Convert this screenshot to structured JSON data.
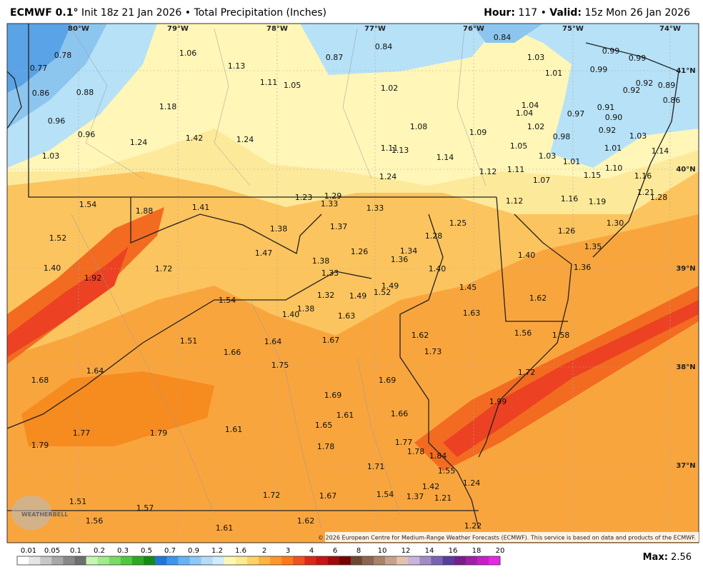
{
  "header": {
    "model": "ECMWF 0.1°",
    "init": "Init 18z 21 Jan 2026",
    "product": "Total Precipitation (Inches)",
    "hour_label": "Hour:",
    "hour": "117",
    "valid_label": "Valid:",
    "valid": "15z Mon 26 Jan 2026",
    "separator": "•"
  },
  "map": {
    "lon_labels": [
      "80°W",
      "79°W",
      "78°W",
      "77°W",
      "76°W",
      "75°W",
      "74°W"
    ],
    "lat_labels": [
      "41°N",
      "40°N",
      "39°N",
      "38°N",
      "37°N"
    ],
    "points": [
      "0.78",
      "0.77",
      "0.86",
      "0.88",
      "0.96",
      "0.96",
      "1.03",
      "1.06",
      "1.13",
      "1.11",
      "1.05",
      "0.87",
      "0.84",
      "0.84",
      "1.03",
      "1.02",
      "1.18",
      "1.24",
      "1.42",
      "1.24",
      "1.08",
      "1.09",
      "1.11",
      "1.13",
      "1.14",
      "1.24",
      "1.12",
      "1.11",
      "1.05",
      "1.03",
      "1.04",
      "1.04",
      "1.02",
      "1.01",
      "0.97",
      "0.98",
      "1.01",
      "0.99",
      "0.99",
      "0.99",
      "0.92",
      "0.89",
      "0.92",
      "0.86",
      "0.91",
      "0.90",
      "0.92",
      "1.03",
      "1.01",
      "1.14",
      "1.15",
      "1.10",
      "1.16",
      "1.21",
      "1.28",
      "1.16",
      "1.19",
      "1.07",
      "1.12",
      "1.54",
      "1.88",
      "1.41",
      "1.23",
      "1.29",
      "1.33",
      "1.33",
      "1.38",
      "1.37",
      "1.28",
      "1.25",
      "1.26",
      "1.30",
      "1.35",
      "1.40",
      "1.36",
      "1.52",
      "1.47",
      "1.38",
      "1.26",
      "1.34",
      "1.36",
      "1.40",
      "1.92",
      "1.72",
      "1.33",
      "1.40",
      "1.49",
      "1.49",
      "1.52",
      "1.32",
      "1.45",
      "1.54",
      "1.38",
      "1.40",
      "1.63",
      "1.63",
      "1.62",
      "1.51",
      "1.64",
      "1.67",
      "1.62",
      "1.73",
      "1.56",
      "1.58",
      "1.66",
      "1.75",
      "1.64",
      "1.68",
      "1.69",
      "1.72",
      "1.69",
      "1.99",
      "1.61",
      "1.66",
      "1.77",
      "1.79",
      "1.61",
      "1.65",
      "1.79",
      "1.77",
      "1.78",
      "1.84",
      "1.78",
      "1.71",
      "1.55",
      "1.42",
      "1.24",
      "1.51",
      "1.72",
      "1.67",
      "1.54",
      "1.37",
      "1.21",
      "1.57",
      "1.56",
      "1.62",
      "1.61",
      "1.22"
    ],
    "watermark": "WEATHERBELL",
    "copyright": "© 2026 European Centre for Medium-Range Weather Forecasts (ECMWF). This service is based on data and products of the ECMWF."
  },
  "colorbar": {
    "labels": [
      "0.01",
      "0.05",
      "0.1",
      "0.2",
      "0.3",
      "0.5",
      "0.7",
      "0.9",
      "1.2",
      "1.6",
      "2",
      "3",
      "4",
      "6",
      "8",
      "10",
      "12",
      "14",
      "16",
      "18",
      "20"
    ],
    "colors": [
      "#ffffff",
      "#e6e6e6",
      "#c8c8c8",
      "#a8a8a8",
      "#888888",
      "#6e6e6e",
      "#c6f5b4",
      "#a0eb8c",
      "#78dc64",
      "#50c83c",
      "#2daa23",
      "#148c14",
      "#1e78dc",
      "#3c96f0",
      "#64b4f5",
      "#8cc8fa",
      "#b4dcfa",
      "#d2ecfc",
      "#fff8b4",
      "#ffeb8c",
      "#ffd264",
      "#ffb43c",
      "#ff9628",
      "#ff7814",
      "#f0501e",
      "#dc2814",
      "#c81414",
      "#a00a0a",
      "#780000",
      "#6e4632",
      "#8c6450",
      "#aa8264",
      "#c8a08c",
      "#e1c3b4",
      "#c8b4dc",
      "#a08cc8",
      "#7864b4",
      "#5a3ca0",
      "#781e8c",
      "#a01eaa",
      "#c81ec8",
      "#e628e6"
    ]
  },
  "max": {
    "label": "Max:",
    "value": "2.56"
  }
}
